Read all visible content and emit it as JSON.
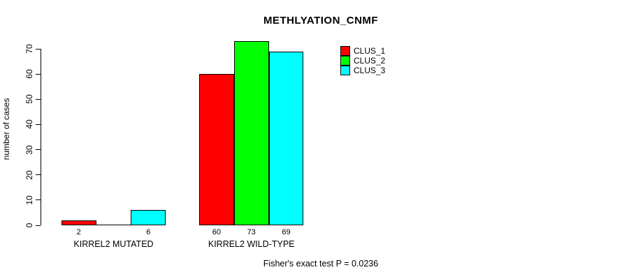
{
  "title": "METHLYATION_CNMF",
  "footer": "Fisher's exact test P = 0.0236",
  "chart_data": {
    "type": "bar",
    "title": "METHLYATION_CNMF",
    "xlabel": "",
    "ylabel": "number of cases",
    "ylim": [
      0,
      70
    ],
    "yticks": [
      0,
      10,
      20,
      30,
      40,
      50,
      60,
      70
    ],
    "grid": false,
    "legend_position": "top-right",
    "categories": [
      "KIRREL2 MUTATED",
      "KIRREL2 WILD-TYPE"
    ],
    "series": [
      {
        "name": "CLUS_1",
        "color": "#ff0000",
        "values": [
          2,
          60
        ]
      },
      {
        "name": "CLUS_2",
        "color": "#00ff00",
        "values": [
          0,
          73
        ]
      },
      {
        "name": "CLUS_3",
        "color": "#00ffff",
        "values": [
          6,
          69
        ]
      }
    ],
    "bar_labels": [
      [
        "2",
        "",
        "6"
      ],
      [
        "60",
        "73",
        "69"
      ]
    ],
    "annotation": "Fisher's exact test P = 0.0236"
  }
}
